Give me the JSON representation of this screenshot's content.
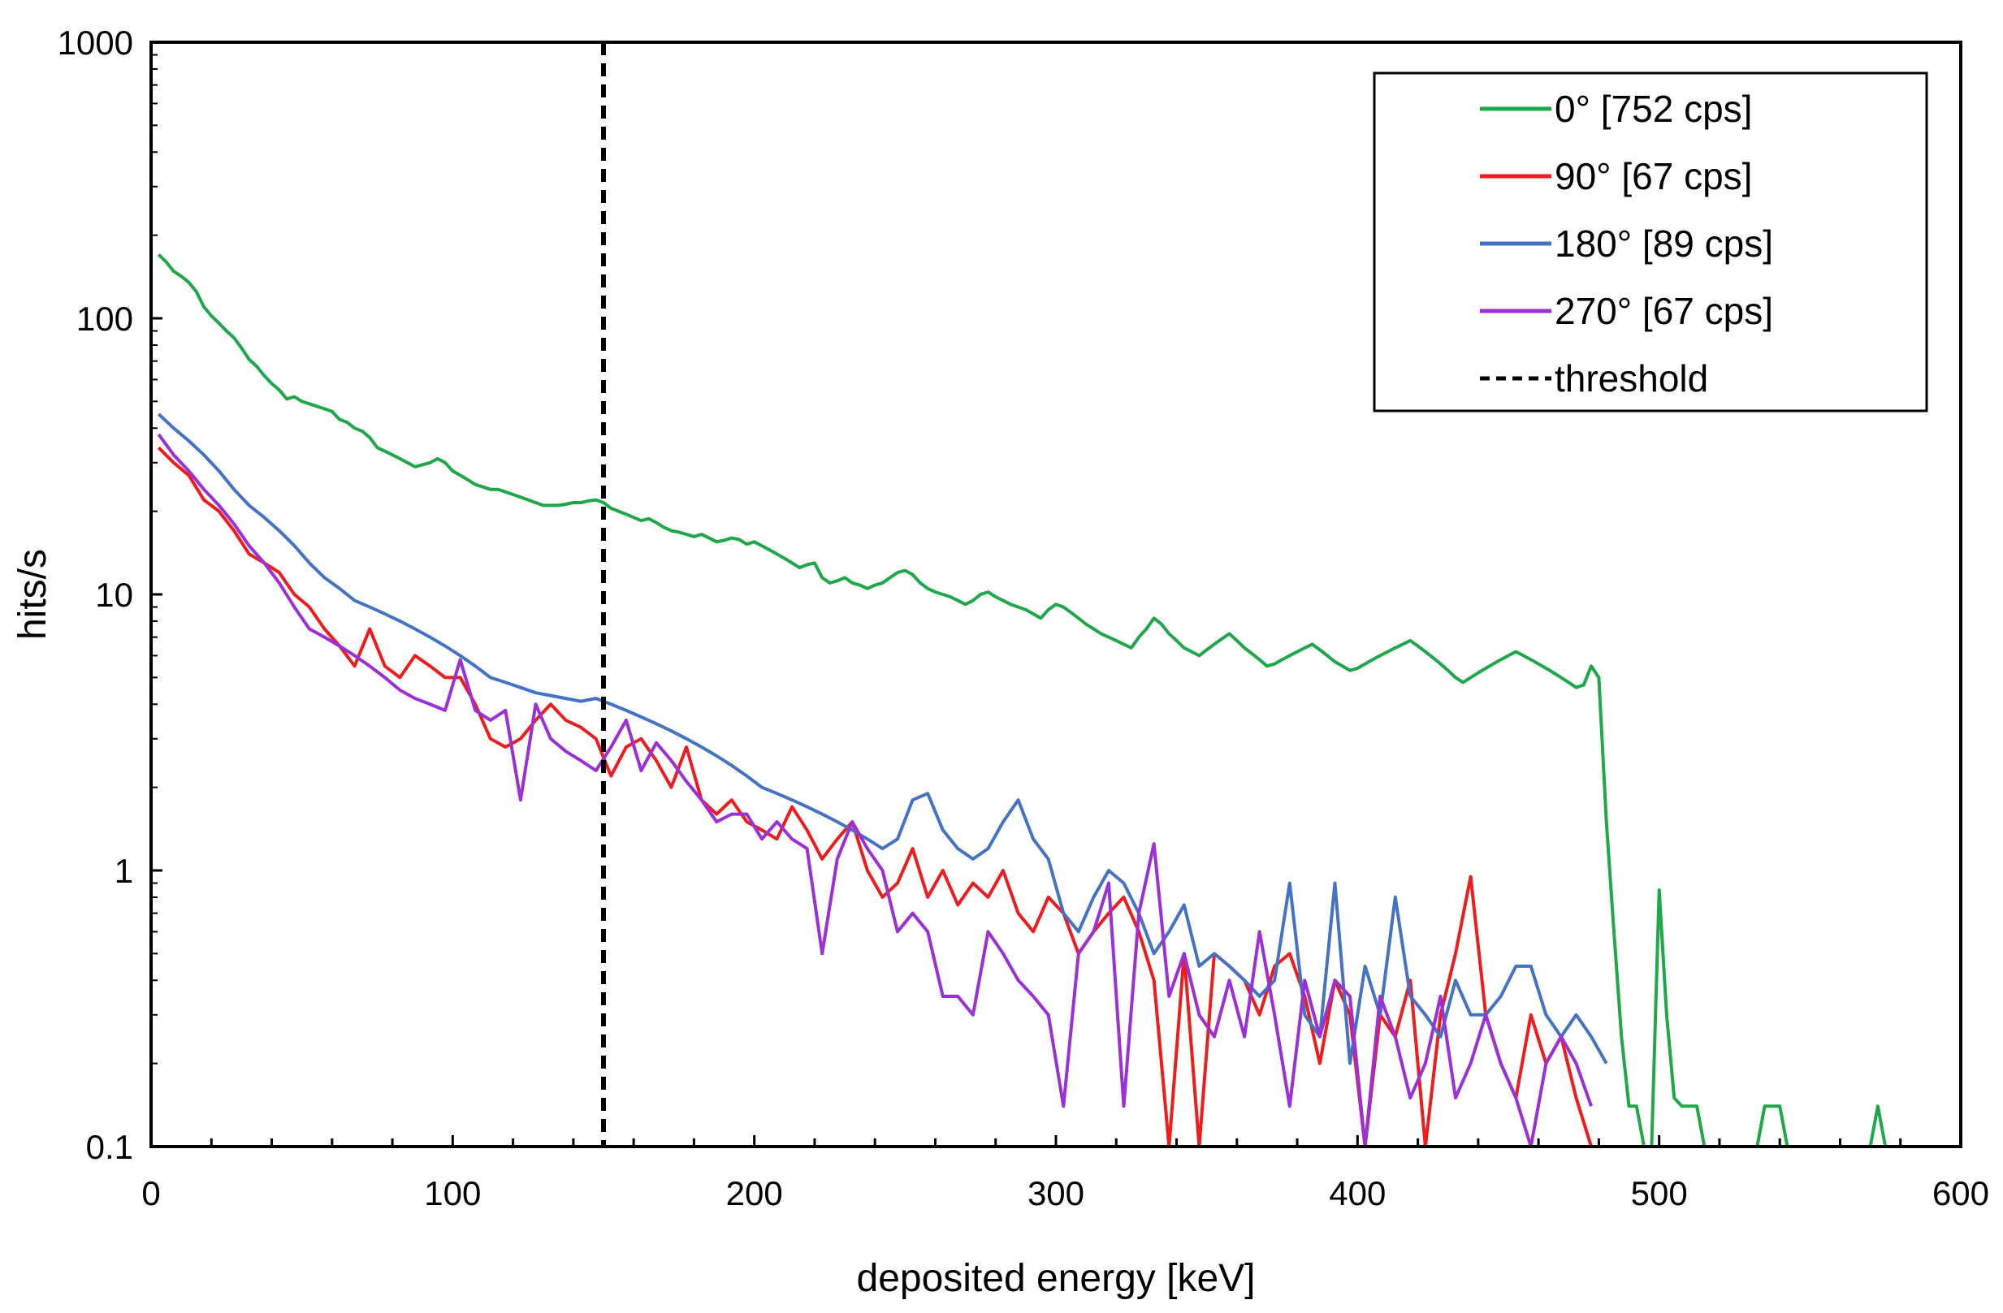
{
  "chart_data": {
    "type": "line",
    "title": "",
    "xlabel": "deposited energy [keV]",
    "ylabel": "hits/s",
    "xlim": [
      0,
      600
    ],
    "ylim": [
      0.1,
      1000
    ],
    "yscale": "log",
    "x_ticks": [
      0,
      100,
      200,
      300,
      400,
      500,
      600
    ],
    "x_tick_labels": [
      "0",
      "100",
      "200",
      "300",
      "400",
      "500",
      "600"
    ],
    "y_ticks": [
      0.1,
      1,
      10,
      100,
      1000
    ],
    "y_tick_labels": [
      "0.1",
      "1",
      "10",
      "100",
      "1000"
    ],
    "grid": false,
    "legend_position": "top-right",
    "threshold": {
      "name": "threshold",
      "x": 150,
      "color": "#000000",
      "style": "dashed"
    },
    "series": [
      {
        "name": "0° [752 cps]",
        "color": "#1fa84a",
        "x": [
          2.5,
          5,
          7.5,
          10,
          12.5,
          15,
          17.5,
          20,
          22.5,
          25,
          27.5,
          30,
          32.5,
          35,
          37.5,
          40,
          42.5,
          45,
          47.5,
          50,
          52.5,
          55,
          57.5,
          60,
          62.5,
          65,
          67.5,
          70,
          72.5,
          75,
          77.5,
          80,
          82.5,
          85,
          87.5,
          90,
          92.5,
          95,
          97.5,
          100,
          102.5,
          105,
          107.5,
          110,
          112.5,
          115,
          117.5,
          120,
          122.5,
          125,
          127.5,
          130,
          132.5,
          135,
          137.5,
          140,
          142.5,
          145,
          147.5,
          150,
          152.5,
          155,
          157.5,
          160,
          162.5,
          165,
          167.5,
          170,
          172.5,
          175,
          177.5,
          180,
          182.5,
          185,
          187.5,
          190,
          192.5,
          195,
          197.5,
          200,
          202.5,
          205,
          207.5,
          210,
          212.5,
          215,
          217.5,
          220,
          222.5,
          225,
          227.5,
          230,
          232.5,
          235,
          237.5,
          240,
          242.5,
          245,
          247.5,
          250,
          252.5,
          255,
          257.5,
          260,
          262.5,
          265,
          267.5,
          270,
          272.5,
          275,
          277.5,
          280,
          282.5,
          285,
          287.5,
          290,
          292.5,
          295,
          297.5,
          300,
          302.5,
          305,
          307.5,
          310,
          312.5,
          315,
          317.5,
          320,
          322.5,
          325,
          327.5,
          330,
          332.5,
          335,
          337.5,
          340,
          342.5,
          345,
          347.5,
          350,
          352.5,
          355,
          357.5,
          360,
          362.5,
          365,
          367.5,
          370,
          372.5,
          375,
          377.5,
          380,
          382.5,
          385,
          387.5,
          390,
          392.5,
          395,
          397.5,
          400,
          402.5,
          405,
          407.5,
          410,
          412.5,
          415,
          417.5,
          420,
          422.5,
          425,
          427.5,
          430,
          432.5,
          435,
          437.5,
          440,
          442.5,
          445,
          447.5,
          450,
          452.5,
          455,
          457.5,
          460,
          462.5,
          465,
          467.5,
          470,
          472.5,
          475,
          477.5,
          480,
          482.5,
          485,
          487.5,
          490,
          492.5,
          495,
          497.5,
          500,
          502.5,
          505,
          507.5,
          510,
          512.5,
          515,
          517.5,
          520,
          522.5,
          525,
          527.5,
          530,
          532.5,
          535,
          537.5,
          540,
          542.5,
          545,
          547.5,
          550,
          552.5,
          555,
          557.5,
          560,
          562.5,
          565,
          567.5,
          570,
          572.5,
          575
        ],
        "values": [
          170,
          160,
          148,
          142,
          135,
          125,
          110,
          102,
          96,
          90,
          85,
          78,
          71,
          67,
          62,
          58,
          55,
          51,
          52,
          50,
          49,
          48,
          47,
          46,
          43,
          42,
          40,
          39,
          37,
          34,
          33,
          32,
          31,
          30,
          29,
          29.5,
          30,
          31,
          30,
          28,
          27,
          26,
          25,
          24.5,
          24,
          24,
          23.5,
          23,
          22.5,
          22,
          21.5,
          21,
          21,
          21,
          21.2,
          21.5,
          21.5,
          21.8,
          22,
          21.5,
          20.5,
          20,
          19.5,
          19,
          18.5,
          18.8,
          18.2,
          17.5,
          17,
          16.8,
          16.5,
          16.2,
          16.5,
          16,
          15.5,
          15.7,
          16,
          15.8,
          15.2,
          15.5,
          15,
          14.5,
          14,
          13.5,
          13,
          12.5,
          12.8,
          13,
          11.5,
          11,
          11.2,
          11.5,
          11,
          10.8,
          10.5,
          10.8,
          11,
          11.5,
          12,
          12.2,
          11.8,
          11,
          10.5,
          10.2,
          10,
          9.8,
          9.5,
          9.2,
          9.5,
          10,
          10.2,
          9.8,
          9.5,
          9.2,
          9,
          8.8,
          8.5,
          8.2,
          8.8,
          9.2,
          9,
          8.6,
          8.2,
          7.8,
          7.5,
          7.2,
          7,
          6.8,
          6.6,
          6.4,
          7,
          7.5,
          8.2,
          7.8,
          7.2,
          6.8,
          6.4,
          6.2,
          6,
          6.3,
          6.6,
          6.9,
          7.2,
          6.8,
          6.4,
          6.1,
          5.8,
          5.5,
          5.6,
          5.8,
          6,
          6.2,
          6.4,
          6.6,
          6.3,
          6,
          5.7,
          5.5,
          5.3,
          5.4,
          5.6,
          5.8,
          6,
          6.2,
          6.4,
          6.6,
          6.8,
          6.5,
          6.2,
          5.9,
          5.6,
          5.3,
          5,
          4.8,
          5,
          5.2,
          5.4,
          5.6,
          5.8,
          6,
          6.2,
          6,
          5.8,
          5.6,
          5.4,
          5.2,
          5,
          4.8,
          4.6,
          4.7,
          5.5,
          5,
          1.5,
          0.6,
          0.25,
          0.14,
          0.14,
          0.1,
          0.1,
          0.85,
          0.3,
          0.15,
          0.14,
          0.14,
          0.14,
          0.1,
          0.1,
          0.1,
          0.1,
          0.1,
          0.1,
          0.1,
          0.1,
          0.14,
          0.14,
          0.14,
          0.1,
          0.1,
          0.1,
          0.1,
          0.1,
          0.1,
          0.1,
          0.1,
          0.1,
          0.1,
          0.1,
          0.1,
          0.14,
          0.1
        ]
      },
      {
        "name": "90° [67 cps]",
        "color": "#ee1c1c",
        "x": [
          2.5,
          7.5,
          12.5,
          17.5,
          22.5,
          27.5,
          32.5,
          37.5,
          42.5,
          47.5,
          52.5,
          57.5,
          62.5,
          67.5,
          72.5,
          77.5,
          82.5,
          87.5,
          92.5,
          97.5,
          102.5,
          107.5,
          112.5,
          117.5,
          122.5,
          127.5,
          132.5,
          137.5,
          142.5,
          147.5,
          152.5,
          157.5,
          162.5,
          167.5,
          172.5,
          177.5,
          182.5,
          187.5,
          192.5,
          197.5,
          202.5,
          207.5,
          212.5,
          217.5,
          222.5,
          227.5,
          232.5,
          237.5,
          242.5,
          247.5,
          252.5,
          257.5,
          262.5,
          267.5,
          272.5,
          277.5,
          282.5,
          287.5,
          292.5,
          297.5,
          302.5,
          307.5,
          312.5,
          317.5,
          322.5,
          327.5,
          332.5,
          337.5,
          342.5,
          347.5,
          352.5,
          357.5,
          362.5,
          367.5,
          372.5,
          377.5,
          382.5,
          387.5,
          392.5,
          397.5,
          402.5,
          407.5,
          412.5,
          417.5,
          422.5,
          427.5,
          432.5,
          437.5,
          442.5,
          447.5,
          452.5,
          457.5,
          462.5,
          467.5,
          472.5,
          477.5
        ],
        "values": [
          34,
          30,
          27,
          22,
          20,
          17,
          14,
          13,
          12,
          10,
          9,
          7.5,
          6.5,
          5.5,
          7.5,
          5.5,
          5,
          6,
          5.5,
          5,
          5,
          4,
          3,
          2.8,
          3,
          3.5,
          4,
          3.5,
          3.3,
          3,
          2.2,
          2.8,
          3,
          2.5,
          2,
          2.8,
          1.8,
          1.6,
          1.8,
          1.5,
          1.4,
          1.3,
          1.7,
          1.4,
          1.1,
          1.3,
          1.5,
          1,
          0.8,
          0.9,
          1.2,
          0.8,
          1,
          0.75,
          0.9,
          0.8,
          1,
          0.7,
          0.6,
          0.8,
          0.7,
          0.5,
          0.6,
          0.7,
          0.8,
          0.6,
          0.4,
          0.1,
          0.5,
          0.1,
          0.5,
          0.45,
          0.4,
          0.3,
          0.45,
          0.5,
          0.35,
          0.2,
          0.4,
          0.3,
          0.1,
          0.3,
          0.25,
          0.4,
          0.1,
          0.3,
          0.5,
          0.95,
          0.3,
          0.2,
          0.15,
          0.3,
          0.2,
          0.25,
          0.15,
          0.1
        ]
      },
      {
        "name": "180° [89 cps]",
        "color": "#4472c4",
        "x": [
          2.5,
          7.5,
          12.5,
          17.5,
          22.5,
          27.5,
          32.5,
          37.5,
          42.5,
          47.5,
          52.5,
          57.5,
          62.5,
          67.5,
          72.5,
          77.5,
          82.5,
          87.5,
          92.5,
          97.5,
          102.5,
          107.5,
          112.5,
          117.5,
          122.5,
          127.5,
          132.5,
          137.5,
          142.5,
          147.5,
          152.5,
          157.5,
          162.5,
          167.5,
          172.5,
          177.5,
          182.5,
          187.5,
          192.5,
          197.5,
          202.5,
          207.5,
          212.5,
          217.5,
          222.5,
          227.5,
          232.5,
          237.5,
          242.5,
          247.5,
          252.5,
          257.5,
          262.5,
          267.5,
          272.5,
          277.5,
          282.5,
          287.5,
          292.5,
          297.5,
          302.5,
          307.5,
          312.5,
          317.5,
          322.5,
          327.5,
          332.5,
          337.5,
          342.5,
          347.5,
          352.5,
          357.5,
          362.5,
          367.5,
          372.5,
          377.5,
          382.5,
          387.5,
          392.5,
          397.5,
          402.5,
          407.5,
          412.5,
          417.5,
          422.5,
          427.5,
          432.5,
          437.5,
          442.5,
          447.5,
          452.5,
          457.5,
          462.5,
          467.5,
          472.5,
          477.5,
          482.5
        ],
        "values": [
          45,
          40,
          36,
          32,
          28,
          24,
          21,
          19,
          17,
          15,
          13,
          11.5,
          10.5,
          9.5,
          9,
          8.5,
          8,
          7.5,
          7,
          6.5,
          6,
          5.5,
          5,
          4.8,
          4.6,
          4.4,
          4.3,
          4.2,
          4.1,
          4.2,
          4,
          3.8,
          3.6,
          3.4,
          3.2,
          3,
          2.8,
          2.6,
          2.4,
          2.2,
          2,
          1.9,
          1.8,
          1.7,
          1.6,
          1.5,
          1.4,
          1.3,
          1.2,
          1.3,
          1.8,
          1.9,
          1.4,
          1.2,
          1.1,
          1.2,
          1.5,
          1.8,
          1.3,
          1.1,
          0.7,
          0.6,
          0.8,
          1,
          0.9,
          0.7,
          0.5,
          0.6,
          0.75,
          0.45,
          0.5,
          0.45,
          0.4,
          0.35,
          0.4,
          0.9,
          0.3,
          0.25,
          0.9,
          0.2,
          0.45,
          0.3,
          0.8,
          0.35,
          0.3,
          0.25,
          0.4,
          0.3,
          0.3,
          0.35,
          0.45,
          0.45,
          0.3,
          0.25,
          0.3,
          0.25,
          0.2
        ]
      },
      {
        "name": "270° [67 cps]",
        "color": "#9b30d9",
        "x": [
          2.5,
          7.5,
          12.5,
          17.5,
          22.5,
          27.5,
          32.5,
          37.5,
          42.5,
          47.5,
          52.5,
          57.5,
          62.5,
          67.5,
          72.5,
          77.5,
          82.5,
          87.5,
          92.5,
          97.5,
          102.5,
          107.5,
          112.5,
          117.5,
          122.5,
          127.5,
          132.5,
          137.5,
          142.5,
          147.5,
          152.5,
          157.5,
          162.5,
          167.5,
          172.5,
          177.5,
          182.5,
          187.5,
          192.5,
          197.5,
          202.5,
          207.5,
          212.5,
          217.5,
          222.5,
          227.5,
          232.5,
          237.5,
          242.5,
          247.5,
          252.5,
          257.5,
          262.5,
          267.5,
          272.5,
          277.5,
          282.5,
          287.5,
          292.5,
          297.5,
          302.5,
          307.5,
          312.5,
          317.5,
          322.5,
          327.5,
          332.5,
          337.5,
          342.5,
          347.5,
          352.5,
          357.5,
          362.5,
          367.5,
          372.5,
          377.5,
          382.5,
          387.5,
          392.5,
          397.5,
          402.5,
          407.5,
          412.5,
          417.5,
          422.5,
          427.5,
          432.5,
          437.5,
          442.5,
          447.5,
          452.5,
          457.5,
          462.5,
          467.5,
          472.5,
          477.5
        ],
        "values": [
          38,
          32,
          28,
          24,
          21,
          18,
          15,
          13,
          11,
          9,
          7.5,
          7,
          6.5,
          6,
          5.5,
          5,
          4.5,
          4.2,
          4,
          3.8,
          5.8,
          3.8,
          3.5,
          3.8,
          1.8,
          4,
          3,
          2.7,
          2.5,
          2.3,
          2.8,
          3.5,
          2.3,
          2.9,
          2.5,
          2.1,
          1.8,
          1.5,
          1.6,
          1.6,
          1.3,
          1.5,
          1.3,
          1.2,
          0.5,
          1.1,
          1.5,
          1.2,
          1,
          0.6,
          0.7,
          0.6,
          0.35,
          0.35,
          0.3,
          0.6,
          0.5,
          0.4,
          0.35,
          0.3,
          0.14,
          0.5,
          0.6,
          0.9,
          0.14,
          0.7,
          1.25,
          0.35,
          0.5,
          0.3,
          0.25,
          0.4,
          0.25,
          0.6,
          0.3,
          0.14,
          0.4,
          0.25,
          0.4,
          0.35,
          0.1,
          0.35,
          0.25,
          0.15,
          0.2,
          0.35,
          0.15,
          0.2,
          0.3,
          0.2,
          0.15,
          0.1,
          0.2,
          0.25,
          0.2,
          0.14
        ]
      }
    ]
  }
}
